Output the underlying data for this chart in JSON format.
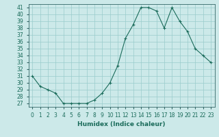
{
  "x": [
    0,
    1,
    2,
    3,
    4,
    5,
    6,
    7,
    8,
    9,
    10,
    11,
    12,
    13,
    14,
    15,
    16,
    17,
    18,
    19,
    20,
    21,
    22,
    23
  ],
  "y": [
    31,
    29.5,
    29,
    28.5,
    27,
    27,
    27,
    27,
    27.5,
    28.5,
    30,
    32.5,
    36.5,
    38.5,
    41,
    41,
    40.5,
    38,
    41,
    39,
    37.5,
    35,
    34,
    33
  ],
  "line_color": "#1a6b5a",
  "marker": "+",
  "marker_size": 3,
  "bg_color": "#cce9e9",
  "grid_color": "#99cccc",
  "xlabel": "Humidex (Indice chaleur)",
  "xlim": [
    -0.5,
    23.5
  ],
  "ylim": [
    26.5,
    41.5
  ],
  "yticks": [
    27,
    28,
    29,
    30,
    31,
    32,
    33,
    34,
    35,
    36,
    37,
    38,
    39,
    40,
    41
  ],
  "xticks": [
    0,
    1,
    2,
    3,
    4,
    5,
    6,
    7,
    8,
    9,
    10,
    11,
    12,
    13,
    14,
    15,
    16,
    17,
    18,
    19,
    20,
    21,
    22,
    23
  ],
  "tick_fontsize": 5.5,
  "label_fontsize": 6.5
}
